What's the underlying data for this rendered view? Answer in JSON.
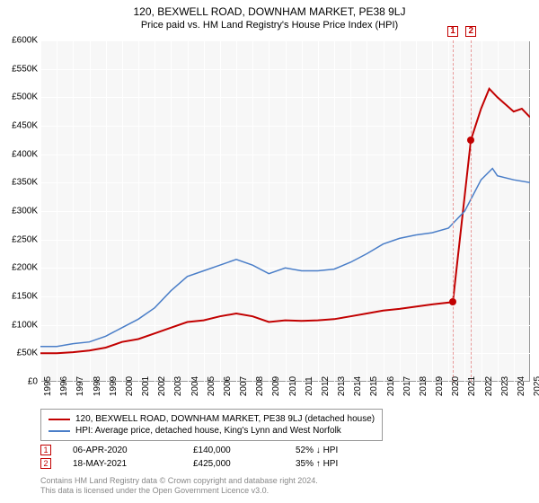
{
  "header": {
    "title": "120, BEXWELL ROAD, DOWNHAM MARKET, PE38 9LJ",
    "title_fontsize": 12,
    "subtitle": "Price paid vs. HM Land Registry's House Price Index (HPI)",
    "subtitle_fontsize": 11
  },
  "chart": {
    "type": "line",
    "background_color": "#f7f7f7",
    "grid_color": "#ffffff",
    "border_color": "#999999",
    "ylim": [
      0,
      600000
    ],
    "ytick_step": 50000,
    "yticks": [
      "£0",
      "£50K",
      "£100K",
      "£150K",
      "£200K",
      "£250K",
      "£300K",
      "£350K",
      "£400K",
      "£450K",
      "£500K",
      "£550K",
      "£600K"
    ],
    "xlim": [
      1995,
      2025
    ],
    "xticks": [
      1995,
      1996,
      1997,
      1998,
      1999,
      2000,
      2001,
      2002,
      2003,
      2004,
      2005,
      2006,
      2007,
      2008,
      2009,
      2010,
      2011,
      2012,
      2013,
      2014,
      2015,
      2016,
      2017,
      2018,
      2019,
      2020,
      2021,
      2022,
      2023,
      2024,
      2025
    ],
    "label_fontsize": 10,
    "series": [
      {
        "name": "property",
        "label": "120, BEXWELL ROAD, DOWNHAM MARKET, PE38 9LJ (detached house)",
        "color": "#c20000",
        "line_width": 2,
        "data": [
          [
            1995,
            50000
          ],
          [
            1996,
            50000
          ],
          [
            1997,
            52000
          ],
          [
            1998,
            55000
          ],
          [
            1999,
            60000
          ],
          [
            2000,
            70000
          ],
          [
            2001,
            75000
          ],
          [
            2002,
            85000
          ],
          [
            2003,
            95000
          ],
          [
            2004,
            105000
          ],
          [
            2005,
            108000
          ],
          [
            2006,
            115000
          ],
          [
            2007,
            120000
          ],
          [
            2008,
            115000
          ],
          [
            2009,
            105000
          ],
          [
            2010,
            108000
          ],
          [
            2011,
            107000
          ],
          [
            2012,
            108000
          ],
          [
            2013,
            110000
          ],
          [
            2014,
            115000
          ],
          [
            2015,
            120000
          ],
          [
            2016,
            125000
          ],
          [
            2017,
            128000
          ],
          [
            2018,
            132000
          ],
          [
            2019,
            136000
          ],
          [
            2020.27,
            140000
          ],
          [
            2021.38,
            425000
          ],
          [
            2022,
            480000
          ],
          [
            2022.5,
            515000
          ],
          [
            2023,
            500000
          ],
          [
            2024,
            475000
          ],
          [
            2024.5,
            480000
          ],
          [
            2025,
            465000
          ]
        ]
      },
      {
        "name": "hpi",
        "label": "HPI: Average price, detached house, King's Lynn and West Norfolk",
        "color": "#4a7ec8",
        "line_width": 1.5,
        "data": [
          [
            1995,
            62000
          ],
          [
            1996,
            62000
          ],
          [
            1997,
            67000
          ],
          [
            1998,
            70000
          ],
          [
            1999,
            80000
          ],
          [
            2000,
            95000
          ],
          [
            2001,
            110000
          ],
          [
            2002,
            130000
          ],
          [
            2003,
            160000
          ],
          [
            2004,
            185000
          ],
          [
            2005,
            195000
          ],
          [
            2006,
            205000
          ],
          [
            2007,
            215000
          ],
          [
            2008,
            205000
          ],
          [
            2009,
            190000
          ],
          [
            2010,
            200000
          ],
          [
            2011,
            195000
          ],
          [
            2012,
            195000
          ],
          [
            2013,
            198000
          ],
          [
            2014,
            210000
          ],
          [
            2015,
            225000
          ],
          [
            2016,
            242000
          ],
          [
            2017,
            252000
          ],
          [
            2018,
            258000
          ],
          [
            2019,
            262000
          ],
          [
            2020,
            270000
          ],
          [
            2021,
            300000
          ],
          [
            2022,
            355000
          ],
          [
            2022.7,
            375000
          ],
          [
            2023,
            362000
          ],
          [
            2024,
            355000
          ],
          [
            2025,
            350000
          ]
        ]
      }
    ],
    "event_markers": [
      {
        "num": "1",
        "x": 2020.27,
        "y": 140000,
        "marker_color": "#c20000",
        "line_color": "#e89999"
      },
      {
        "num": "2",
        "x": 2021.38,
        "y": 425000,
        "marker_color": "#c20000",
        "line_color": "#e89999"
      }
    ]
  },
  "legend": {
    "items": [
      {
        "color": "#c20000",
        "label": "120, BEXWELL ROAD, DOWNHAM MARKET, PE38 9LJ (detached house)"
      },
      {
        "color": "#4a7ec8",
        "label": "HPI: Average price, detached house, King's Lynn and West Norfolk"
      }
    ]
  },
  "events": [
    {
      "num": "1",
      "date": "06-APR-2020",
      "price": "£140,000",
      "delta": "52% ↓ HPI",
      "color": "#c20000"
    },
    {
      "num": "2",
      "date": "18-MAY-2021",
      "price": "£425,000",
      "delta": "35% ↑ HPI",
      "color": "#c20000"
    }
  ],
  "footer": {
    "line1": "Contains HM Land Registry data © Crown copyright and database right 2024.",
    "line2": "This data is licensed under the Open Government Licence v3.0."
  }
}
